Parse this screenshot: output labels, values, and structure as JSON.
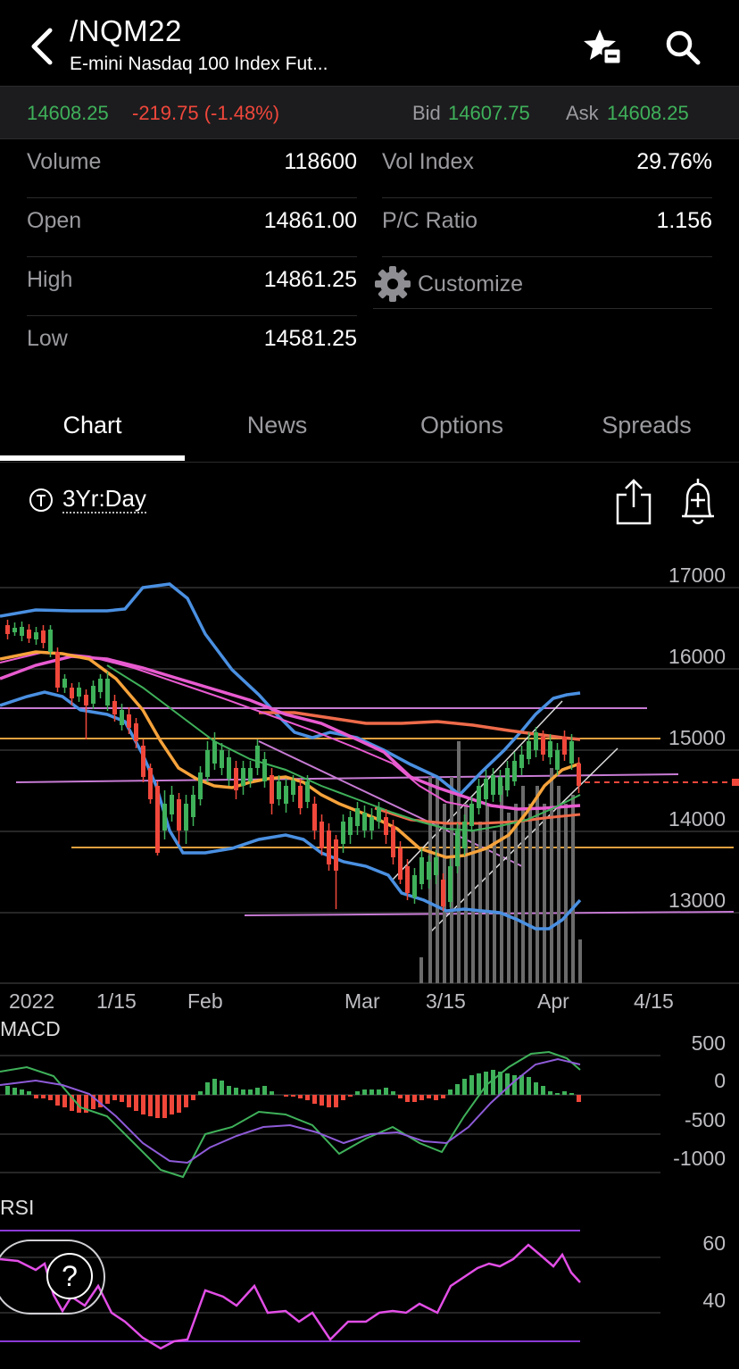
{
  "header": {
    "symbol": "/NQM22",
    "subtitle": "E-mini Nasdaq 100 Index Fut...",
    "back_icon": "chevron-left-icon",
    "watch_icon": "star-remove-icon",
    "search_icon": "search-icon"
  },
  "quote": {
    "last": "14608.25",
    "change": "-219.75 (-1.48%)",
    "bid_label": "Bid",
    "bid": "14607.75",
    "ask_label": "Ask",
    "ask": "14608.25"
  },
  "stats": {
    "left": [
      {
        "label": "Volume",
        "value": "118600"
      },
      {
        "label": "Open",
        "value": "14861.00"
      },
      {
        "label": "High",
        "value": "14861.25"
      },
      {
        "label": "Low",
        "value": "14581.25"
      }
    ],
    "right": [
      {
        "label": "Vol Index",
        "value": "29.76%"
      },
      {
        "label": "P/C Ratio",
        "value": "1.156"
      }
    ],
    "customize_label": "Customize"
  },
  "tabs": [
    {
      "label": "Chart",
      "active": true
    },
    {
      "label": "News",
      "active": false
    },
    {
      "label": "Options",
      "active": false
    },
    {
      "label": "Spreads",
      "active": false
    }
  ],
  "toolbar": {
    "range_label": "3Yr:Day",
    "share_icon": "share-icon",
    "alert_icon": "add-alert-bell-icon"
  },
  "chart": {
    "price_axis": [
      "17000",
      "16000",
      "15000",
      "14000",
      "13000"
    ],
    "date_axis": [
      "2022",
      "1/15",
      "Feb",
      "Mar",
      "3/15",
      "Apr",
      "4/15"
    ],
    "macd_label": "MACD",
    "macd_axis": [
      "500",
      "0",
      "-500",
      "-1000"
    ],
    "rsi_label": "RSI",
    "rsi_axis": [
      "60",
      "40"
    ]
  },
  "colors": {
    "up": "#3fb15a",
    "down": "#f0473b",
    "bollinger": "#4a90e2",
    "ema_orange": "#f6a33b",
    "ma_magenta": "#e85bd0",
    "ma_red": "#ee6b4a",
    "rsi": "#e24ee6"
  },
  "help": {
    "label": "?"
  }
}
